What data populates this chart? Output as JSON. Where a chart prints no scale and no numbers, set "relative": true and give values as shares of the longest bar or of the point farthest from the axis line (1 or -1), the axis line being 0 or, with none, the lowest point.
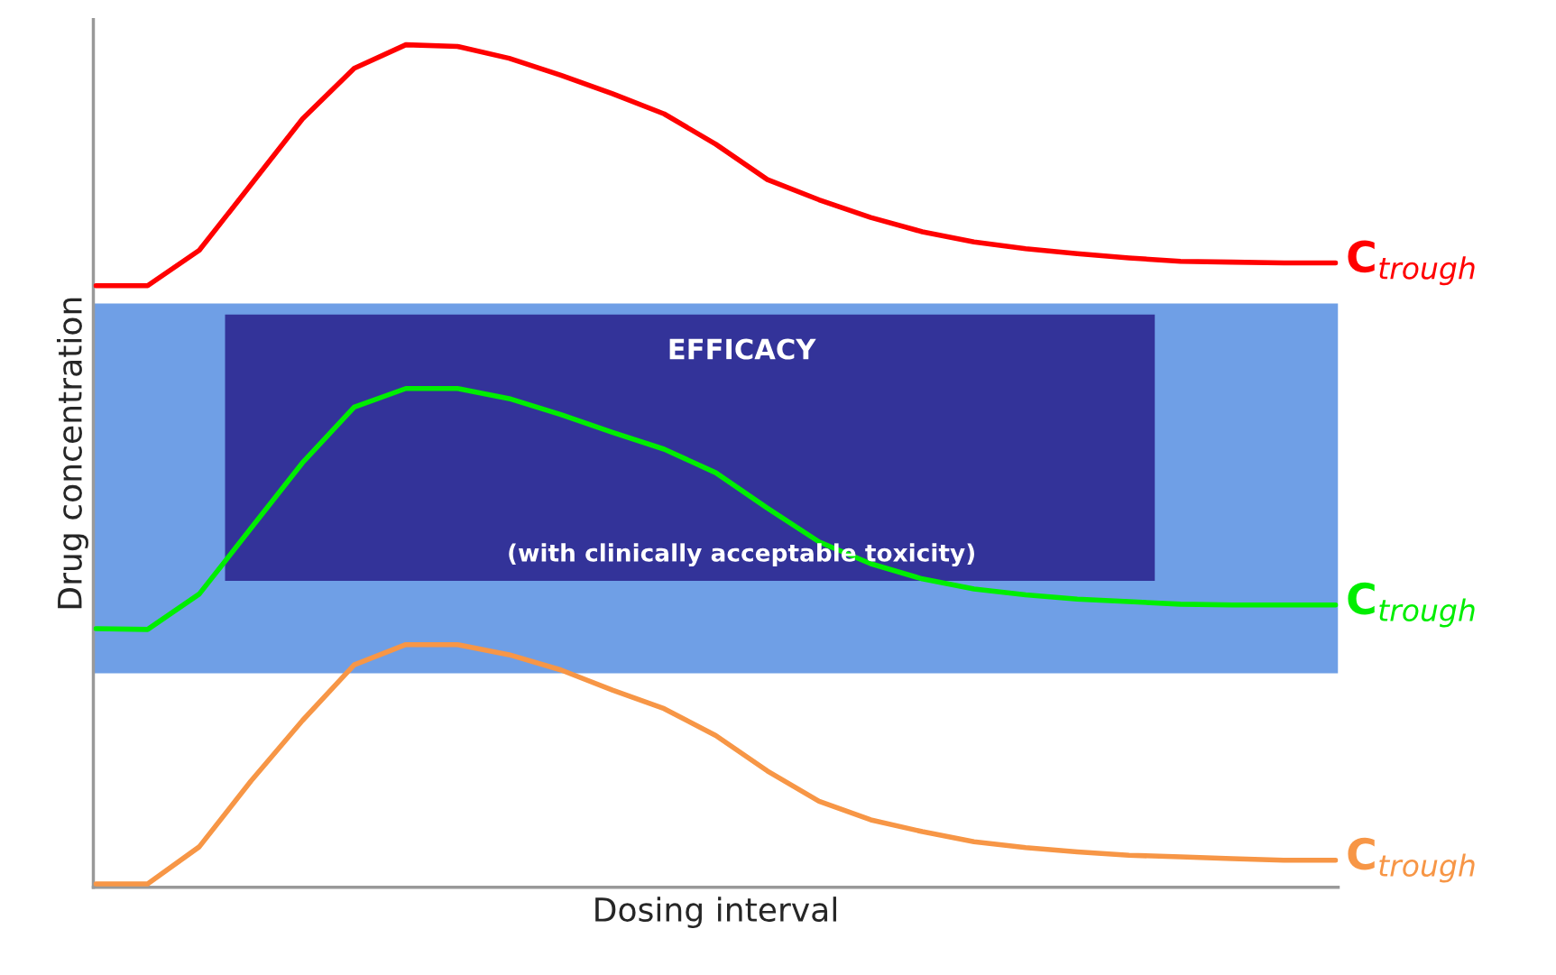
{
  "chart_data": {
    "type": "line",
    "relative": true,
    "xlabel": "Dosing interval",
    "ylabel": "Drug concentration",
    "categories": [
      null,
      null,
      null,
      null,
      null,
      null,
      null,
      null,
      null,
      null,
      null,
      null,
      null,
      null,
      null,
      null,
      null,
      null,
      null,
      null,
      null,
      null,
      null,
      null,
      null
    ],
    "series": [
      {
        "name": "C$_{trough}$",
        "color": "#ff0000",
        "values": [
          0.714,
          0.714,
          0.756,
          0.834,
          0.912,
          0.972,
          1,
          0.998,
          0.984,
          0.964,
          0.942,
          0.918,
          0.882,
          0.84,
          0.816,
          0.795,
          0.778,
          0.766,
          0.758,
          0.752,
          0.747,
          0.743,
          0.742,
          0.741,
          0.741
        ]
      },
      {
        "name": "C$_{trough}$",
        "color": "#00ee00",
        "values": [
          0.307,
          0.306,
          0.348,
          0.426,
          0.504,
          0.57,
          0.592,
          0.592,
          0.58,
          0.561,
          0.54,
          0.52,
          0.492,
          0.45,
          0.41,
          0.384,
          0.366,
          0.354,
          0.347,
          0.342,
          0.339,
          0.336,
          0.335,
          0.335,
          0.335
        ]
      },
      {
        "name": "C$_{trough}$",
        "color": "#f79646",
        "values": [
          0.004,
          0.004,
          0.048,
          0.126,
          0.198,
          0.264,
          0.288,
          0.288,
          0.276,
          0.258,
          0.234,
          0.212,
          0.18,
          0.138,
          0.102,
          0.08,
          0.066,
          0.054,
          0.047,
          0.042,
          0.038,
          0.036,
          0.034,
          0.032,
          0.032
        ]
      }
    ],
    "bands": [
      {
        "axis": "y",
        "from": 0.254,
        "to": 0.693,
        "label": "EFFICACY\n\n(with clinically acceptable toxicity)",
        "color": "#6f9fe6"
      }
    ],
    "grid": false,
    "legend": false,
    "marker": "none",
    "line_style": "solid"
  }
}
